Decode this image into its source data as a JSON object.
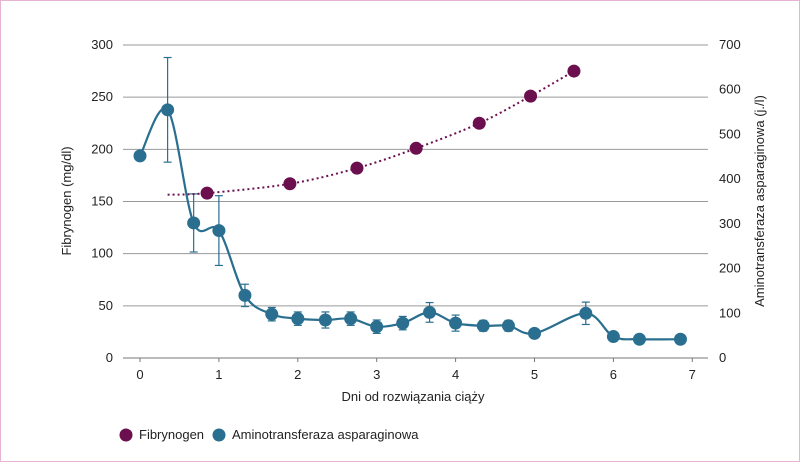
{
  "colors": {
    "fibrinogen": "#6b0f4f",
    "aminotransferase": "#2a6f8f",
    "grid": "#9a9a9a",
    "frame": "#e6b3d3"
  },
  "chart_data": {
    "type": "line",
    "xlabel": "Dni od rozwiązania ciąży",
    "ylabel_left": "Fibrynogen (mg/dl)",
    "ylabel_right": "Aminotransferaza asparaginowa (j./l)",
    "xlim": [
      0,
      7
    ],
    "ylim_left": [
      0,
      300
    ],
    "ylim_right": [
      0,
      700
    ],
    "x_ticks": [
      "0",
      "1",
      "2",
      "3",
      "4",
      "5",
      "6",
      "7"
    ],
    "y_left_ticks": [
      "0",
      "50",
      "100",
      "150",
      "200",
      "250",
      "300"
    ],
    "y_right_ticks": [
      "0",
      "100",
      "200",
      "300",
      "400",
      "500",
      "600",
      "700"
    ],
    "grid": true,
    "legend_position": "bottom-left",
    "series": [
      {
        "name": "Fibrynogen",
        "axis": "left",
        "style": "dotted trend",
        "x": [
          0.85,
          1.9,
          2.75,
          3.5,
          4.3,
          4.95,
          5.5
        ],
        "y": [
          158,
          167,
          182,
          201,
          225,
          251,
          275
        ]
      },
      {
        "name": "Aminotransferaza asparaginowa",
        "axis": "right",
        "style": "smooth line",
        "x": [
          0.0,
          0.35,
          0.68,
          1.0,
          1.33,
          1.67,
          2.0,
          2.35,
          2.67,
          3.0,
          3.33,
          3.67,
          4.0,
          4.35,
          4.67,
          5.0,
          5.65,
          6.0,
          6.33,
          6.85
        ],
        "y": [
          452,
          555,
          302,
          285,
          140,
          98,
          88,
          85,
          88,
          70,
          78,
          102,
          78,
          72,
          72,
          55,
          100,
          48,
          42,
          42
        ],
        "error": [
          null,
          117,
          65,
          78,
          25,
          15,
          15,
          18,
          15,
          15,
          15,
          22,
          18,
          12,
          12,
          null,
          25,
          null,
          null,
          null
        ]
      }
    ]
  }
}
